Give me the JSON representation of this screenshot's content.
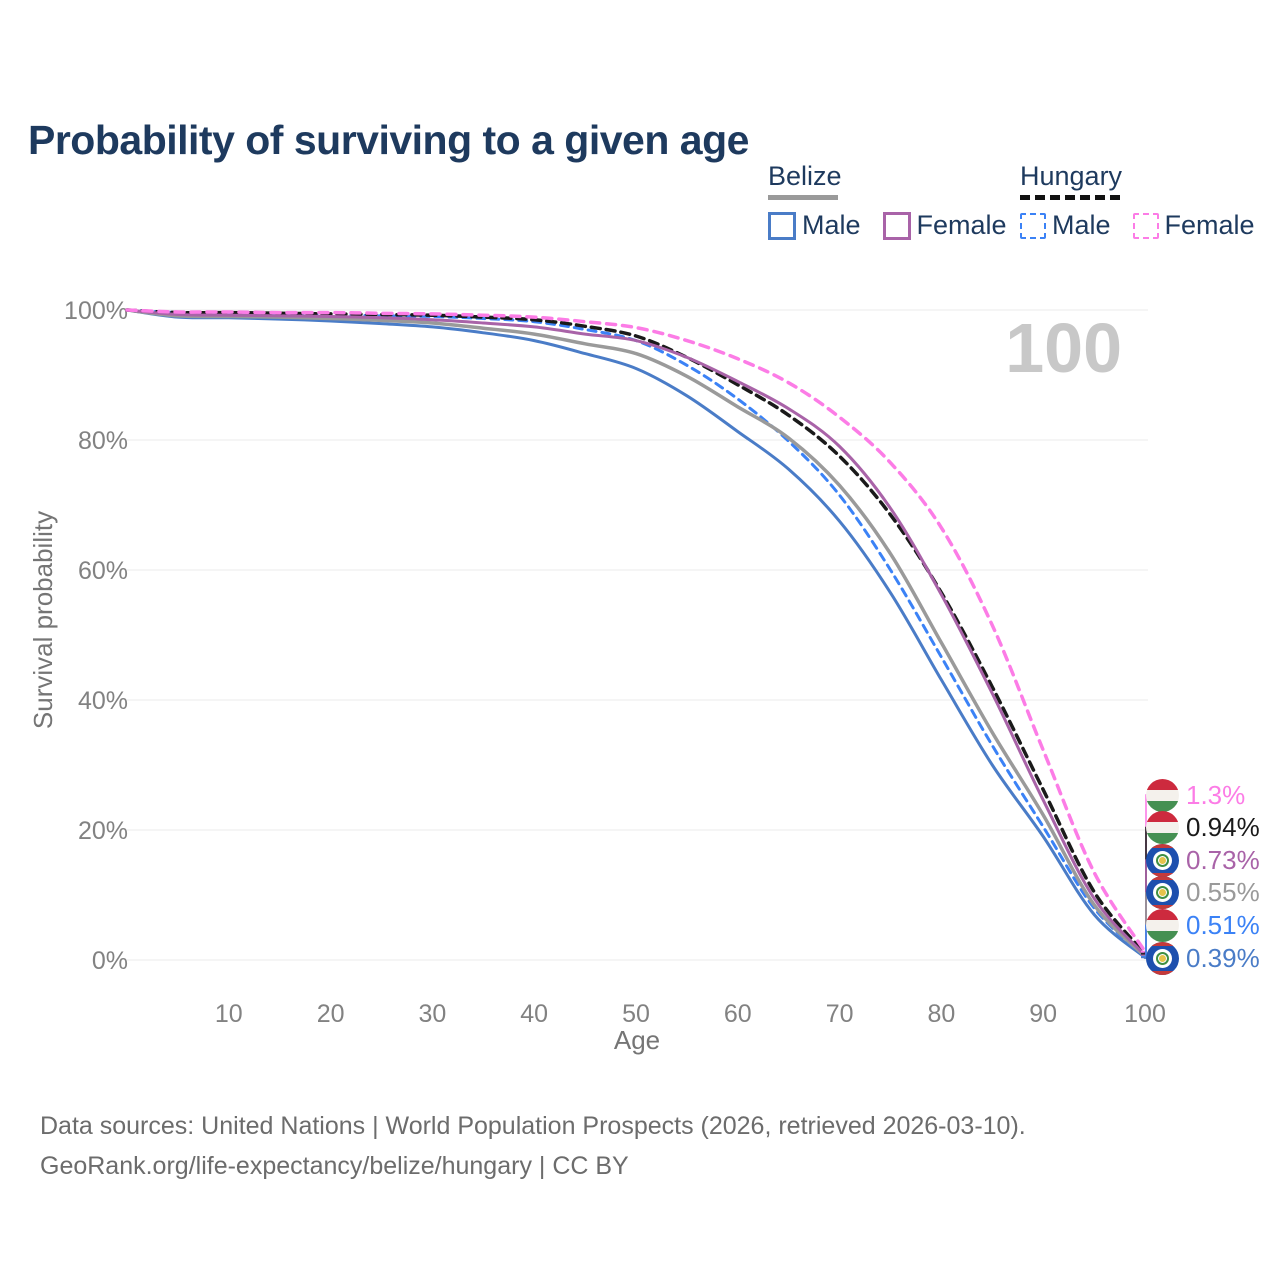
{
  "title": "Probability of surviving to a given age",
  "watermark_age": "100",
  "legend": {
    "groups": [
      {
        "country": "Belize",
        "line_style": "solid",
        "underline_color": "#9a9a9a",
        "items": [
          {
            "label": "Male",
            "color": "#4a7cc7"
          },
          {
            "label": "Female",
            "color": "#a963a8"
          }
        ]
      },
      {
        "country": "Hungary",
        "line_style": "dashed",
        "underline_color": "#111111",
        "items": [
          {
            "label": "Male",
            "color": "#3b82f6"
          },
          {
            "label": "Female",
            "color": "#fc7ce6"
          }
        ]
      }
    ]
  },
  "chart_data": {
    "type": "line",
    "title": "Probability of surviving to a given age",
    "xlabel": "Age",
    "ylabel": "Survival probability",
    "xlim": [
      0,
      100
    ],
    "ylim": [
      0,
      100
    ],
    "grid": "horizontal",
    "x_ticks": [
      10,
      20,
      30,
      40,
      50,
      60,
      70,
      80,
      90,
      100
    ],
    "y_ticks": [
      0,
      20,
      40,
      60,
      80,
      100
    ],
    "y_tick_labels": [
      "0%",
      "20%",
      "40%",
      "60%",
      "80%",
      "100%"
    ],
    "x": [
      0,
      5,
      10,
      15,
      20,
      25,
      30,
      35,
      40,
      45,
      50,
      55,
      60,
      65,
      70,
      75,
      80,
      85,
      90,
      95,
      100
    ],
    "series": [
      {
        "name": "Belize Male",
        "country": "belize",
        "sex": "male",
        "color": "#4a7cc7",
        "dash": "",
        "width": 3,
        "end_label": "0.39%",
        "values": [
          100,
          98.9,
          98.8,
          98.6,
          98.3,
          97.9,
          97.4,
          96.5,
          95.3,
          93.3,
          91.0,
          86.8,
          81.3,
          75.5,
          67.5,
          56.5,
          43.1,
          30.0,
          19.0,
          7.0,
          0.39
        ]
      },
      {
        "name": "Hungary Male",
        "country": "hungary",
        "sex": "male",
        "color": "#3b82f6",
        "dash": "8 6",
        "width": 3,
        "end_label": "0.51%",
        "values": [
          100,
          99.6,
          99.5,
          99.4,
          99.3,
          99.1,
          99.0,
          98.7,
          98.2,
          97.0,
          95.3,
          91.5,
          86.3,
          79.8,
          71.5,
          60.0,
          46.6,
          33.0,
          20.5,
          8.0,
          0.51
        ]
      },
      {
        "name": "Belize (all)",
        "country": "belize",
        "sex": "all",
        "color": "#9a9a9a",
        "dash": "",
        "width": 3.5,
        "end_label": "0.55%",
        "values": [
          100,
          99.1,
          99.0,
          98.9,
          98.7,
          98.4,
          98.0,
          97.2,
          96.3,
          94.8,
          93.3,
          89.8,
          85.1,
          80.3,
          73.0,
          62.5,
          48.8,
          35.0,
          22.3,
          8.5,
          0.55
        ]
      },
      {
        "name": "Hungary (all)",
        "country": "hungary",
        "sex": "all",
        "color": "#1a1a1a",
        "dash": "9 6",
        "width": 3.5,
        "end_label": "0.94%",
        "values": [
          100,
          99.6,
          99.6,
          99.5,
          99.4,
          99.3,
          99.2,
          98.9,
          98.5,
          97.5,
          96.0,
          92.7,
          88.5,
          83.8,
          77.5,
          68.5,
          56.5,
          42.0,
          26.2,
          10.5,
          0.94
        ]
      },
      {
        "name": "Belize Female",
        "country": "belize",
        "sex": "female",
        "color": "#a963a8",
        "dash": "",
        "width": 3,
        "end_label": "0.73%",
        "values": [
          100,
          99.3,
          99.2,
          99.1,
          99.0,
          98.8,
          98.5,
          98.0,
          97.4,
          96.3,
          95.3,
          92.7,
          89.0,
          84.8,
          79.0,
          69.5,
          56.2,
          41.0,
          24.6,
          9.5,
          0.73
        ]
      },
      {
        "name": "Hungary Female",
        "country": "hungary",
        "sex": "female",
        "color": "#fc7ce6",
        "dash": "9 7",
        "width": 3.5,
        "end_label": "1.3%",
        "values": [
          100,
          99.7,
          99.7,
          99.6,
          99.6,
          99.5,
          99.4,
          99.2,
          98.9,
          98.2,
          97.3,
          95.3,
          92.5,
          88.8,
          83.5,
          76.5,
          66.5,
          51.5,
          32.3,
          13.5,
          1.3
        ]
      }
    ]
  },
  "footer": {
    "line1": "Data sources: United Nations | World Population Prospects (2026, retrieved 2026-03-10).",
    "line2": "GeoRank.org/life-expectancy/belize/hungary | CC BY"
  }
}
